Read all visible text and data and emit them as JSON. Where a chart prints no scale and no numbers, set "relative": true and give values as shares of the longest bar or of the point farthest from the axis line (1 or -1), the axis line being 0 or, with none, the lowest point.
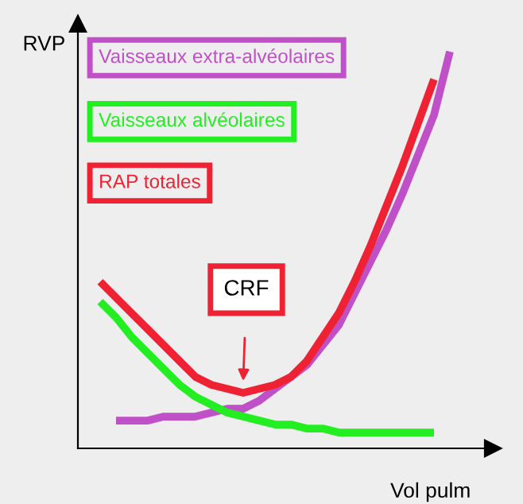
{
  "chart_data": {
    "type": "line",
    "relative": true,
    "xlabel": "Vol pulm",
    "ylabel": "RVP",
    "legend": "top left",
    "grid": false,
    "marker": "none",
    "line_style": "solid",
    "categories": [
      null,
      null,
      null,
      null,
      null,
      null,
      null,
      null,
      null,
      null,
      null,
      null,
      null,
      null,
      null,
      null,
      null,
      null,
      null,
      null,
      null,
      null,
      null
    ],
    "series": [
      {
        "name": "Vaisseaux extra-alvéolaires",
        "color": "#c050c8",
        "values": [
          null,
          0.07,
          0.07,
          0.07,
          0.08,
          0.08,
          0.08,
          0.09,
          0.1,
          0.1,
          0.12,
          0.15,
          0.18,
          0.21,
          0.26,
          0.31,
          0.39,
          0.47,
          0.55,
          0.64,
          0.74,
          0.84,
          1.0
        ]
      },
      {
        "name": "Vaisseaux alvéolaires",
        "color": "#22ee22",
        "values": [
          0.37,
          0.33,
          0.28,
          0.24,
          0.2,
          0.16,
          0.13,
          0.11,
          0.09,
          0.08,
          0.07,
          0.06,
          0.06,
          0.05,
          0.05,
          0.04,
          0.04,
          0.04,
          0.04,
          0.04,
          0.04,
          0.04,
          null
        ]
      },
      {
        "name": "RAP totales",
        "color": "#ee2233",
        "values": [
          0.42,
          0.38,
          0.34,
          0.3,
          0.26,
          0.22,
          0.18,
          0.16,
          0.15,
          0.14,
          0.15,
          0.16,
          0.18,
          0.22,
          0.28,
          0.34,
          0.42,
          0.51,
          0.61,
          0.71,
          0.82,
          0.93,
          null
        ]
      }
    ],
    "annotations": [
      "CRF"
    ]
  }
}
